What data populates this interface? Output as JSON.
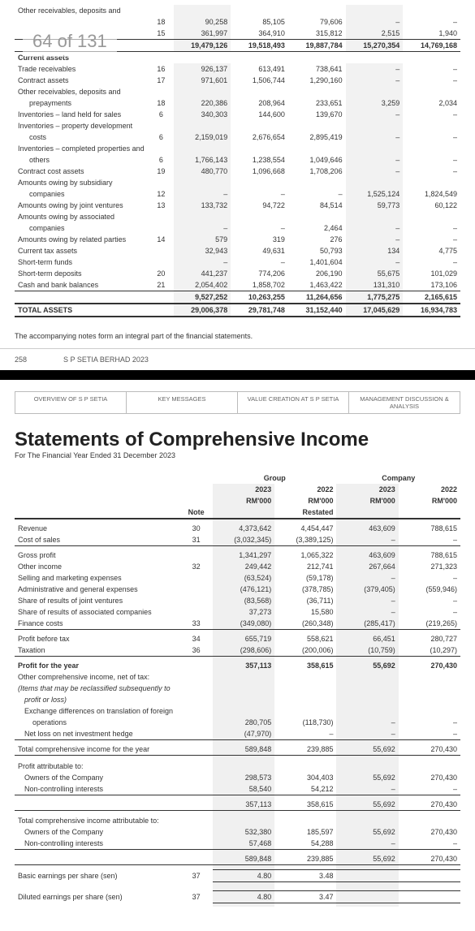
{
  "page_indicator": "64 of 131",
  "top_table": {
    "cols": [
      "label",
      "note",
      "c1",
      "c2",
      "c3",
      "c4",
      "c5"
    ],
    "hl_col_indices": [
      2,
      5
    ],
    "pre_rows": [
      {
        "label": "Other receivables, deposits and",
        "indent": 1,
        "note": "",
        "c1": "",
        "c2": "",
        "c3": "",
        "c4": "",
        "c5": ""
      },
      {
        "label": "",
        "indent": 1,
        "note": "18",
        "c1": "90,258",
        "c2": "85,105",
        "c3": "79,606",
        "c4": "–",
        "c5": "–"
      },
      {
        "label": "",
        "indent": 1,
        "note": "15",
        "c1": "361,997",
        "c2": "364,910",
        "c3": "315,812",
        "c4": "2,515",
        "c5": "1,940"
      }
    ],
    "pre_total": {
      "label": "",
      "indent": 0,
      "note": "",
      "c1": "19,479,126",
      "c2": "19,518,493",
      "c3": "19,887,784",
      "c4": "15,270,354",
      "c5": "14,769,168",
      "bold": true
    },
    "section_head": "Current assets",
    "rows": [
      {
        "label": "Trade receivables",
        "indent": 1,
        "note": "16",
        "c1": "926,137",
        "c2": "613,491",
        "c3": "738,641",
        "c4": "–",
        "c5": "–"
      },
      {
        "label": "Contract assets",
        "indent": 1,
        "note": "17",
        "c1": "971,601",
        "c2": "1,506,744",
        "c3": "1,290,160",
        "c4": "–",
        "c5": "–"
      },
      {
        "label": "Other receivables, deposits and",
        "indent": 1,
        "note": "",
        "c1": "",
        "c2": "",
        "c3": "",
        "c4": "",
        "c5": ""
      },
      {
        "label": "prepayments",
        "indent": 2,
        "note": "18",
        "c1": "220,386",
        "c2": "208,964",
        "c3": "233,651",
        "c4": "3,259",
        "c5": "2,034"
      },
      {
        "label": "Inventories – land held for sales",
        "indent": 1,
        "note": "6",
        "c1": "340,303",
        "c2": "144,600",
        "c3": "139,670",
        "c4": "–",
        "c5": "–"
      },
      {
        "label": "Inventories – property development",
        "indent": 1,
        "note": "",
        "c1": "",
        "c2": "",
        "c3": "",
        "c4": "",
        "c5": ""
      },
      {
        "label": "costs",
        "indent": 2,
        "note": "6",
        "c1": "2,159,019",
        "c2": "2,676,654",
        "c3": "2,895,419",
        "c4": "–",
        "c5": "–"
      },
      {
        "label": "Inventories – completed properties and",
        "indent": 1,
        "note": "",
        "c1": "",
        "c2": "",
        "c3": "",
        "c4": "",
        "c5": ""
      },
      {
        "label": "others",
        "indent": 2,
        "note": "6",
        "c1": "1,766,143",
        "c2": "1,238,554",
        "c3": "1,049,646",
        "c4": "–",
        "c5": "–"
      },
      {
        "label": "Contract cost assets",
        "indent": 1,
        "note": "19",
        "c1": "480,770",
        "c2": "1,096,668",
        "c3": "1,708,206",
        "c4": "–",
        "c5": "–"
      },
      {
        "label": "Amounts owing by subsidiary",
        "indent": 1,
        "note": "",
        "c1": "",
        "c2": "",
        "c3": "",
        "c4": "",
        "c5": ""
      },
      {
        "label": "companies",
        "indent": 2,
        "note": "12",
        "c1": "–",
        "c2": "–",
        "c3": "–",
        "c4": "1,525,124",
        "c5": "1,824,549"
      },
      {
        "label": "Amounts owing by joint ventures",
        "indent": 1,
        "note": "13",
        "c1": "133,732",
        "c2": "94,722",
        "c3": "84,514",
        "c4": "59,773",
        "c5": "60,122"
      },
      {
        "label": "Amounts owing by associated",
        "indent": 1,
        "note": "",
        "c1": "",
        "c2": "",
        "c3": "",
        "c4": "",
        "c5": ""
      },
      {
        "label": "companies",
        "indent": 2,
        "note": "",
        "c1": "–",
        "c2": "–",
        "c3": "2,464",
        "c4": "–",
        "c5": "–"
      },
      {
        "label": "Amounts owing by related parties",
        "indent": 1,
        "note": "14",
        "c1": "579",
        "c2": "319",
        "c3": "276",
        "c4": "–",
        "c5": "–"
      },
      {
        "label": "Current tax assets",
        "indent": 1,
        "note": "",
        "c1": "32,943",
        "c2": "49,631",
        "c3": "50,793",
        "c4": "134",
        "c5": "4,775"
      },
      {
        "label": "Short-term funds",
        "indent": 1,
        "note": "",
        "c1": "–",
        "c2": "–",
        "c3": "1,401,604",
        "c4": "–",
        "c5": "–"
      },
      {
        "label": "Short-term deposits",
        "indent": 1,
        "note": "20",
        "c1": "441,237",
        "c2": "774,206",
        "c3": "206,190",
        "c4": "55,675",
        "c5": "101,029"
      },
      {
        "label": "Cash and bank balances",
        "indent": 1,
        "note": "21",
        "c1": "2,054,402",
        "c2": "1,858,702",
        "c3": "1,463,422",
        "c4": "131,310",
        "c5": "173,106"
      }
    ],
    "subtotal": {
      "label": "",
      "c1": "9,527,252",
      "c2": "10,263,255",
      "c3": "11,264,656",
      "c4": "1,775,275",
      "c5": "2,165,615",
      "bold": true
    },
    "total": {
      "label": "TOTAL ASSETS",
      "c1": "29,006,378",
      "c2": "29,781,748",
      "c3": "31,152,440",
      "c4": "17,045,629",
      "c5": "16,934,783",
      "bold": true
    }
  },
  "footnote": "The accompanying notes form an integral part of the financial statements.",
  "page_footer": {
    "num": "258",
    "text": "S P SETIA BERHAD 2023"
  },
  "tabs": [
    "OVERVIEW OF S P SETIA",
    "KEY MESSAGES",
    "VALUE CREATION AT S P SETIA",
    "MANAGEMENT DISCUSSION & ANALYSIS"
  ],
  "ci_title": "Statements of Comprehensive Income",
  "ci_subtitle": "For The Financial Year Ended 31 December 2023",
  "ci_headers": {
    "group": "Group",
    "company": "Company",
    "note": "Note",
    "g2023": "2023",
    "g2022": "2022",
    "c2023": "2023",
    "c2022": "2022",
    "rm": "RM'000",
    "restated": "Restated"
  },
  "ci_rows": [
    {
      "label": "Revenue",
      "note": "30",
      "g1": "4,373,642",
      "g2": "4,454,447",
      "c1": "463,609",
      "c2": "788,615"
    },
    {
      "label": "Cost of sales",
      "note": "31",
      "g1": "(3,032,345)",
      "g2": "(3,389,125)",
      "c1": "–",
      "c2": "–",
      "line_after": true
    },
    {
      "label": "Gross profit",
      "note": "",
      "g1": "1,341,297",
      "g2": "1,065,322",
      "c1": "463,609",
      "c2": "788,615"
    },
    {
      "label": "Other income",
      "note": "32",
      "g1": "249,442",
      "g2": "212,741",
      "c1": "267,664",
      "c2": "271,323"
    },
    {
      "label": "Selling and marketing expenses",
      "note": "",
      "g1": "(63,524)",
      "g2": "(59,178)",
      "c1": "–",
      "c2": "–"
    },
    {
      "label": "Administrative and general expenses",
      "note": "",
      "g1": "(476,121)",
      "g2": "(378,785)",
      "c1": "(379,405)",
      "c2": "(559,946)"
    },
    {
      "label": "Share of results of joint ventures",
      "note": "",
      "g1": "(83,568)",
      "g2": "(36,711)",
      "c1": "–",
      "c2": "–"
    },
    {
      "label": "Share of results of associated companies",
      "note": "",
      "g1": "37,273",
      "g2": "15,580",
      "c1": "–",
      "c2": "–"
    },
    {
      "label": "Finance costs",
      "note": "33",
      "g1": "(349,080)",
      "g2": "(260,348)",
      "c1": "(285,417)",
      "c2": "(219,265)",
      "line_after": true
    },
    {
      "label": "Profit before tax",
      "note": "34",
      "g1": "655,719",
      "g2": "558,621",
      "c1": "66,451",
      "c2": "280,727"
    },
    {
      "label": "Taxation",
      "note": "36",
      "g1": "(298,606)",
      "g2": "(200,006)",
      "c1": "(10,759)",
      "c2": "(10,297)",
      "line_after": true
    },
    {
      "label": "Profit for the year",
      "note": "",
      "g1": "357,113",
      "g2": "358,615",
      "c1": "55,692",
      "c2": "270,430",
      "bold": true
    }
  ],
  "ci_oci": [
    {
      "label": "Other comprehensive income, net of tax:",
      "italic": false
    },
    {
      "label": "(Items that may be reclassified subsequently to",
      "italic": true,
      "indent": 0
    },
    {
      "label": "profit or loss)",
      "italic": true,
      "indent": 1
    },
    {
      "label": "Exchange differences on translation of foreign",
      "italic": false,
      "indent": 1
    },
    {
      "label": "operations",
      "italic": false,
      "indent": 2,
      "g1": "280,705",
      "g2": "(118,730)",
      "c1": "–",
      "c2": "–"
    },
    {
      "label": "Net loss on net investment hedge",
      "italic": false,
      "indent": 1,
      "g1": "(47,970)",
      "g2": "–",
      "c1": "–",
      "c2": "–",
      "line_after": true
    }
  ],
  "ci_totcomp": {
    "label": "Total comprehensive income for the year",
    "g1": "589,848",
    "g2": "239,885",
    "c1": "55,692",
    "c2": "270,430",
    "bold": false
  },
  "ci_attrib": {
    "head": "Profit attributable to:",
    "rows": [
      {
        "label": "Owners of the Company",
        "g1": "298,573",
        "g2": "304,403",
        "c1": "55,692",
        "c2": "270,430",
        "indent": 1
      },
      {
        "label": "Non-controlling interests",
        "g1": "58,540",
        "g2": "54,212",
        "c1": "–",
        "c2": "–",
        "indent": 1
      }
    ],
    "total": {
      "g1": "357,113",
      "g2": "358,615",
      "c1": "55,692",
      "c2": "270,430"
    }
  },
  "ci_tci_attrib": {
    "head": "Total comprehensive income attributable to:",
    "rows": [
      {
        "label": "Owners of the Company",
        "g1": "532,380",
        "g2": "185,597",
        "c1": "55,692",
        "c2": "270,430",
        "indent": 1
      },
      {
        "label": "Non-controlling interests",
        "g1": "57,468",
        "g2": "54,288",
        "c1": "–",
        "c2": "–",
        "indent": 1
      }
    ],
    "total": {
      "g1": "589,848",
      "g2": "239,885",
      "c1": "55,692",
      "c2": "270,430"
    }
  },
  "ci_eps": [
    {
      "label": "Basic earnings per share (sen)",
      "note": "37",
      "g1": "4.80",
      "g2": "3.48"
    },
    {
      "label": "Diluted earnings per share (sen)",
      "note": "37",
      "g1": "4.80",
      "g2": "3.47"
    }
  ],
  "colors": {
    "hl": "#f0f0f0",
    "line": "#333333"
  }
}
